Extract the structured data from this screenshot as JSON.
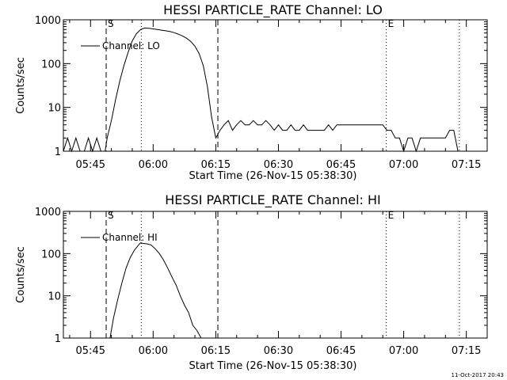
{
  "footer_date": "11-Oct-2017 20:43",
  "chart_data": [
    {
      "type": "line",
      "title": "HESSI PARTICLE_RATE Channel: LO",
      "xlabel": "Start Time (26-Nov-15 05:38:30)",
      "ylabel": "Counts/sec",
      "y_scale": "log",
      "ylim": [
        1,
        1000
      ],
      "y_ticks": [
        1,
        10,
        100,
        1000
      ],
      "y_tick_labels": [
        "1",
        "10",
        "100",
        "1000"
      ],
      "x_axis_unit": "time (HH:MM)",
      "xlim": [
        "05:38:30",
        "07:20:00"
      ],
      "x_ticks": [
        "05:45",
        "06:00",
        "06:15",
        "06:30",
        "06:45",
        "07:00",
        "07:15"
      ],
      "legend": {
        "position": "top-left",
        "entries": [
          "Channel: LO"
        ]
      },
      "markers": [
        {
          "label": "S",
          "time": "05:48:45",
          "style": "dashed"
        },
        {
          "label": "",
          "time": "05:57:10",
          "style": "dotted"
        },
        {
          "label": "",
          "time": "06:15:30",
          "style": "dashed"
        },
        {
          "label": "E",
          "time": "06:55:50",
          "style": "dotted"
        },
        {
          "label": "",
          "time": "07:13:20",
          "style": "dotted"
        }
      ],
      "series": [
        {
          "name": "Channel: LO",
          "points": [
            [
              "05:38:30",
              1
            ],
            [
              "05:39:30",
              2
            ],
            [
              "05:40:30",
              1
            ],
            [
              "05:41:30",
              2
            ],
            [
              "05:42:30",
              1
            ],
            [
              "05:43:30",
              1
            ],
            [
              "05:44:30",
              2
            ],
            [
              "05:45:30",
              1
            ],
            [
              "05:46:30",
              2
            ],
            [
              "05:47:30",
              1
            ],
            [
              "05:48:30",
              1
            ],
            [
              "05:49:00",
              2
            ],
            [
              "05:50:00",
              5
            ],
            [
              "05:51:00",
              15
            ],
            [
              "05:52:00",
              40
            ],
            [
              "05:53:00",
              90
            ],
            [
              "05:54:00",
              180
            ],
            [
              "05:55:00",
              330
            ],
            [
              "05:56:00",
              480
            ],
            [
              "05:57:00",
              600
            ],
            [
              "05:58:00",
              650
            ],
            [
              "05:59:00",
              640
            ],
            [
              "06:00:00",
              620
            ],
            [
              "06:01:00",
              600
            ],
            [
              "06:02:00",
              580
            ],
            [
              "06:03:00",
              560
            ],
            [
              "06:04:00",
              540
            ],
            [
              "06:05:00",
              510
            ],
            [
              "06:06:00",
              470
            ],
            [
              "06:07:00",
              430
            ],
            [
              "06:08:00",
              380
            ],
            [
              "06:09:00",
              320
            ],
            [
              "06:10:00",
              250
            ],
            [
              "06:11:00",
              170
            ],
            [
              "06:12:00",
              90
            ],
            [
              "06:13:00",
              30
            ],
            [
              "06:14:00",
              6
            ],
            [
              "06:15:00",
              2
            ],
            [
              "06:16:00",
              3
            ],
            [
              "06:17:00",
              4
            ],
            [
              "06:18:00",
              5
            ],
            [
              "06:19:00",
              3
            ],
            [
              "06:20:00",
              4
            ],
            [
              "06:21:00",
              5
            ],
            [
              "06:22:00",
              4
            ],
            [
              "06:23:00",
              4
            ],
            [
              "06:24:00",
              5
            ],
            [
              "06:25:00",
              4
            ],
            [
              "06:26:00",
              4
            ],
            [
              "06:27:00",
              5
            ],
            [
              "06:28:00",
              4
            ],
            [
              "06:29:00",
              3
            ],
            [
              "06:30:00",
              4
            ],
            [
              "06:31:00",
              3
            ],
            [
              "06:32:00",
              3
            ],
            [
              "06:33:00",
              4
            ],
            [
              "06:34:00",
              3
            ],
            [
              "06:35:00",
              3
            ],
            [
              "06:36:00",
              4
            ],
            [
              "06:37:00",
              3
            ],
            [
              "06:38:00",
              3
            ],
            [
              "06:39:00",
              3
            ],
            [
              "06:40:00",
              3
            ],
            [
              "06:41:00",
              3
            ],
            [
              "06:42:00",
              4
            ],
            [
              "06:43:00",
              3
            ],
            [
              "06:44:00",
              4
            ],
            [
              "06:45:00",
              4
            ],
            [
              "06:46:00",
              4
            ],
            [
              "06:47:00",
              4
            ],
            [
              "06:48:00",
              4
            ],
            [
              "06:49:00",
              4
            ],
            [
              "06:50:00",
              4
            ],
            [
              "06:51:00",
              4
            ],
            [
              "06:52:00",
              4
            ],
            [
              "06:53:00",
              4
            ],
            [
              "06:54:00",
              4
            ],
            [
              "06:55:00",
              4
            ],
            [
              "06:56:00",
              3
            ],
            [
              "06:57:00",
              3
            ],
            [
              "06:58:00",
              2
            ],
            [
              "06:59:00",
              2
            ],
            [
              "07:00:00",
              1
            ],
            [
              "07:01:00",
              2
            ],
            [
              "07:02:00",
              2
            ],
            [
              "07:03:00",
              1
            ],
            [
              "07:04:00",
              2
            ],
            [
              "07:05:00",
              2
            ],
            [
              "07:06:00",
              2
            ],
            [
              "07:07:00",
              2
            ],
            [
              "07:08:00",
              2
            ],
            [
              "07:09:00",
              2
            ],
            [
              "07:10:00",
              2
            ],
            [
              "07:11:00",
              3
            ],
            [
              "07:12:00",
              3
            ],
            [
              "07:13:00",
              1
            ]
          ]
        }
      ]
    },
    {
      "type": "line",
      "title": "HESSI PARTICLE_RATE Channel: HI",
      "xlabel": "Start Time (26-Nov-15 05:38:30)",
      "ylabel": "Counts/sec",
      "y_scale": "log",
      "ylim": [
        1,
        1000
      ],
      "y_ticks": [
        1,
        10,
        100,
        1000
      ],
      "y_tick_labels": [
        "1",
        "10",
        "100",
        "1000"
      ],
      "x_axis_unit": "time (HH:MM)",
      "xlim": [
        "05:38:30",
        "07:20:00"
      ],
      "x_ticks": [
        "05:45",
        "06:00",
        "06:15",
        "06:30",
        "06:45",
        "07:00",
        "07:15"
      ],
      "legend": {
        "position": "top-left",
        "entries": [
          "Channel: HI"
        ]
      },
      "markers": [
        {
          "label": "S",
          "time": "05:48:45",
          "style": "dashed"
        },
        {
          "label": "",
          "time": "05:57:10",
          "style": "dotted"
        },
        {
          "label": "",
          "time": "06:15:30",
          "style": "dashed"
        },
        {
          "label": "E",
          "time": "06:55:50",
          "style": "dotted"
        },
        {
          "label": "",
          "time": "07:13:20",
          "style": "dotted"
        }
      ],
      "series": [
        {
          "name": "Channel: HI",
          "points": [
            [
              "05:49:40",
              1
            ],
            [
              "05:50:30",
              3
            ],
            [
              "05:51:30",
              8
            ],
            [
              "05:52:30",
              20
            ],
            [
              "05:53:30",
              45
            ],
            [
              "05:54:30",
              80
            ],
            [
              "05:55:30",
              120
            ],
            [
              "05:56:30",
              160
            ],
            [
              "05:57:00",
              180
            ],
            [
              "05:57:30",
              175
            ],
            [
              "05:58:30",
              170
            ],
            [
              "05:59:30",
              160
            ],
            [
              "06:00:30",
              130
            ],
            [
              "06:01:30",
              100
            ],
            [
              "06:02:30",
              70
            ],
            [
              "06:03:30",
              45
            ],
            [
              "06:04:30",
              28
            ],
            [
              "06:05:30",
              18
            ],
            [
              "06:06:30",
              10
            ],
            [
              "06:07:30",
              6
            ],
            [
              "06:08:30",
              4
            ],
            [
              "06:09:30",
              2
            ],
            [
              "06:10:30",
              1.5
            ],
            [
              "06:11:30",
              1
            ]
          ]
        }
      ]
    }
  ]
}
